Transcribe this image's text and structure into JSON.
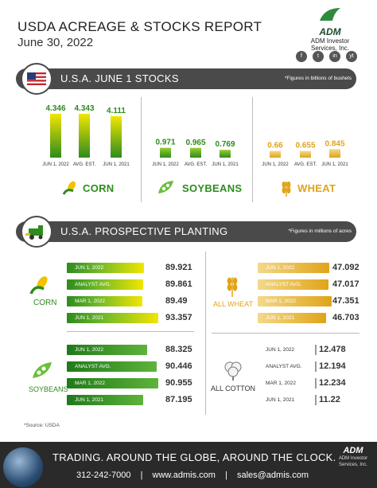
{
  "header": {
    "title": "USDA ACREAGE & STOCKS REPORT",
    "date": "June 30, 2022"
  },
  "logo": {
    "name": "ADM",
    "line1": "ADM Investor",
    "line2": "Services, Inc."
  },
  "social": [
    "f",
    "t",
    "in",
    "yt"
  ],
  "stocks_band": {
    "title": "U.S.A. JUNE 1 STOCKS",
    "note": "*Figures in billions of bushels"
  },
  "planting_band": {
    "title": "U.S.A. PROSPECTIVE PLANTING",
    "note": "*Figures in millions of acres"
  },
  "chart_data": [
    {
      "type": "bar",
      "crop": "CORN",
      "categories": [
        "JUN 1, 2022",
        "AVG. EST.",
        "JUN 1, 2021"
      ],
      "values": [
        4.346,
        4.343,
        4.111
      ],
      "labels": [
        "4.346",
        "4.343",
        "4.111"
      ],
      "color": "#f2e600",
      "label_color": "#2e8b1e",
      "colors": [
        "#2e8b1e",
        "#f2e600"
      ]
    },
    {
      "type": "bar",
      "crop": "SOYBEANS",
      "categories": [
        "JUN 1, 2022",
        "AVG. EST.",
        "JUN 1, 2021"
      ],
      "values": [
        0.971,
        0.965,
        0.769
      ],
      "labels": [
        "0.971",
        "0.965",
        "0.769"
      ],
      "color": "#5cae3d",
      "label_color": "#2e8b1e",
      "colors": [
        "#2e8b1e",
        "#9acd32"
      ]
    },
    {
      "type": "bar",
      "crop": "WHEAT",
      "categories": [
        "JUN 1, 2022",
        "AVG. EST.",
        "JUN 1, 2021"
      ],
      "values": [
        0.66,
        0.655,
        0.845
      ],
      "labels": [
        "0.66",
        "0.655",
        "0.845"
      ],
      "color": "#e8b73a",
      "label_color": "#e0a418",
      "colors": [
        "#e0a418",
        "#f3d98a"
      ]
    },
    {
      "type": "bar",
      "crop": "CORN",
      "categories": [
        "JUN 1, 2022",
        "ANALYST AVG.",
        "MAR 1, 2022",
        "JUN 1, 2021"
      ],
      "values": [
        89.921,
        89.861,
        89.49,
        93.357
      ],
      "labels": [
        "89.921",
        "89.861",
        "89.49",
        "93.357"
      ]
    },
    {
      "type": "bar",
      "crop": "SOYBEANS",
      "categories": [
        "JUN 1, 2022",
        "ANALYST AVG.",
        "MAR 1, 2022",
        "JUN 1, 2021"
      ],
      "values": [
        88.325,
        90.446,
        90.955,
        87.195
      ],
      "labels": [
        "88.325",
        "90.446",
        "90.955",
        "87.195"
      ]
    },
    {
      "type": "bar",
      "crop": "ALL WHEAT",
      "categories": [
        "JUN 1, 2022",
        "ANALYST AVG.",
        "MAR 1, 2022",
        "JUN 1, 2021"
      ],
      "values": [
        47.092,
        47.017,
        47.351,
        46.703
      ],
      "labels": [
        "47.092",
        "47.017",
        "47.351",
        "46.703"
      ]
    },
    {
      "type": "bar",
      "crop": "ALL COTTON",
      "categories": [
        "JUN 1, 2022",
        "ANALYST AVG.",
        "MAR 1, 2022",
        "JUN 1, 2021"
      ],
      "values": [
        12.478,
        12.194,
        12.234,
        11.22
      ],
      "labels": [
        "12.478",
        "12.194",
        "12.234",
        "11.22"
      ]
    }
  ],
  "source": "*Source: USDA",
  "footer": {
    "tagline": "TRADING. AROUND THE GLOBE, AROUND THE CLOCK.",
    "phone": "312-242-7000",
    "site": "www.admis.com",
    "email": "sales@admis.com",
    "sep": "|",
    "logo": "ADM",
    "logo_l1": "ADM Investor",
    "logo_l2": "Services, Inc."
  }
}
